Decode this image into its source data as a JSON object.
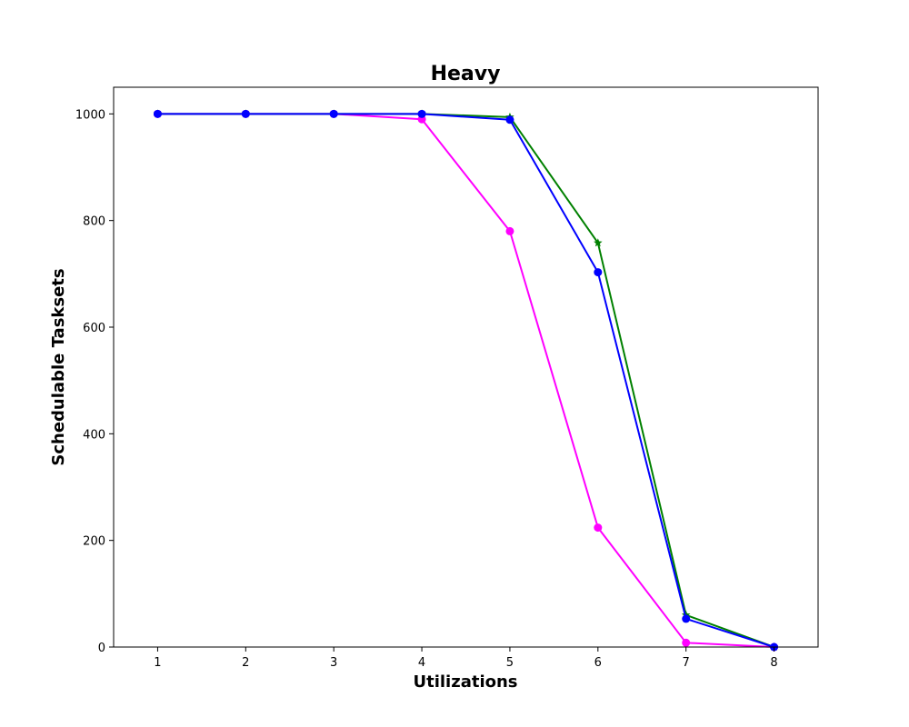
{
  "chart_data": {
    "type": "line",
    "title": "Heavy",
    "xlabel": "Utilizations",
    "ylabel": "Schedulable Tasksets",
    "x": [
      1,
      2,
      3,
      4,
      5,
      6,
      7,
      8
    ],
    "xlim": [
      0.5,
      8.5
    ],
    "ylim": [
      0,
      1050
    ],
    "xticks": [
      "1",
      "2",
      "3",
      "4",
      "5",
      "6",
      "7",
      "8"
    ],
    "yticks": [
      "0",
      "200",
      "400",
      "600",
      "800",
      "1000"
    ],
    "grid": false,
    "series": [
      {
        "color": "#ff00ff",
        "marker": "circle",
        "values": [
          1000,
          1000,
          1000,
          990,
          780,
          224,
          8,
          0
        ]
      },
      {
        "color": "#008000",
        "marker": "star",
        "values": [
          1000,
          1000,
          1000,
          1000,
          994,
          758,
          60,
          0
        ]
      },
      {
        "color": "#0000ff",
        "marker": "circle",
        "values": [
          1000,
          1000,
          1000,
          1000,
          989,
          703,
          53,
          0
        ]
      }
    ]
  }
}
